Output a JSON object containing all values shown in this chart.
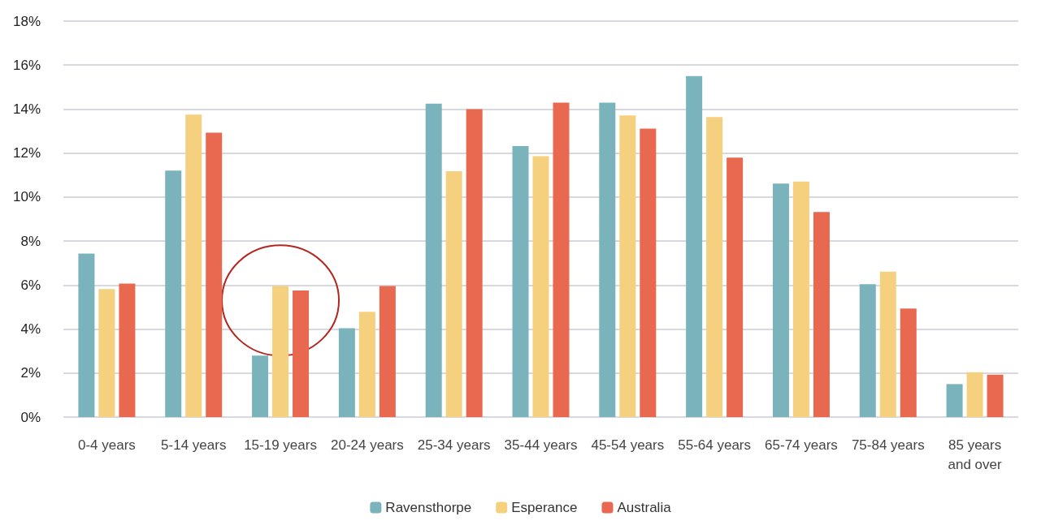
{
  "chart_data": {
    "type": "bar",
    "categories": [
      "0-4 years",
      "5-14 years",
      "15-19 years",
      "20-24 years",
      "25-34 years",
      "35-44 years",
      "45-54 years",
      "55-64 years",
      "65-74 years",
      "75-84 years",
      "85 years\nand over"
    ],
    "series": [
      {
        "name": "Ravensthorpe",
        "color": "#7ab3bb",
        "values": [
          7.43,
          11.2,
          2.79,
          4.04,
          14.25,
          12.32,
          14.29,
          15.5,
          10.61,
          6.04,
          1.5
        ]
      },
      {
        "name": "Esperance",
        "color": "#f5d07e",
        "values": [
          5.82,
          13.75,
          5.96,
          4.79,
          11.18,
          11.86,
          13.71,
          13.64,
          10.71,
          6.61,
          2.04
        ]
      },
      {
        "name": "Australia",
        "color": "#e8694f",
        "values": [
          6.07,
          12.93,
          5.75,
          5.96,
          14.0,
          14.29,
          13.11,
          11.79,
          9.32,
          4.93,
          1.93
        ]
      }
    ],
    "ylim": [
      0,
      18
    ],
    "yticks": [
      {
        "value": 0,
        "label": "0%"
      },
      {
        "value": 2,
        "label": "2%"
      },
      {
        "value": 4,
        "label": "4%"
      },
      {
        "value": 6,
        "label": "6%"
      },
      {
        "value": 8,
        "label": "8%"
      },
      {
        "value": 10,
        "label": "10%"
      },
      {
        "value": 12,
        "label": "12%"
      },
      {
        "value": 14,
        "label": "14%"
      },
      {
        "value": 16,
        "label": "16%"
      },
      {
        "value": 18,
        "label": "18%"
      }
    ],
    "grid": "y",
    "legend": "bottom"
  }
}
